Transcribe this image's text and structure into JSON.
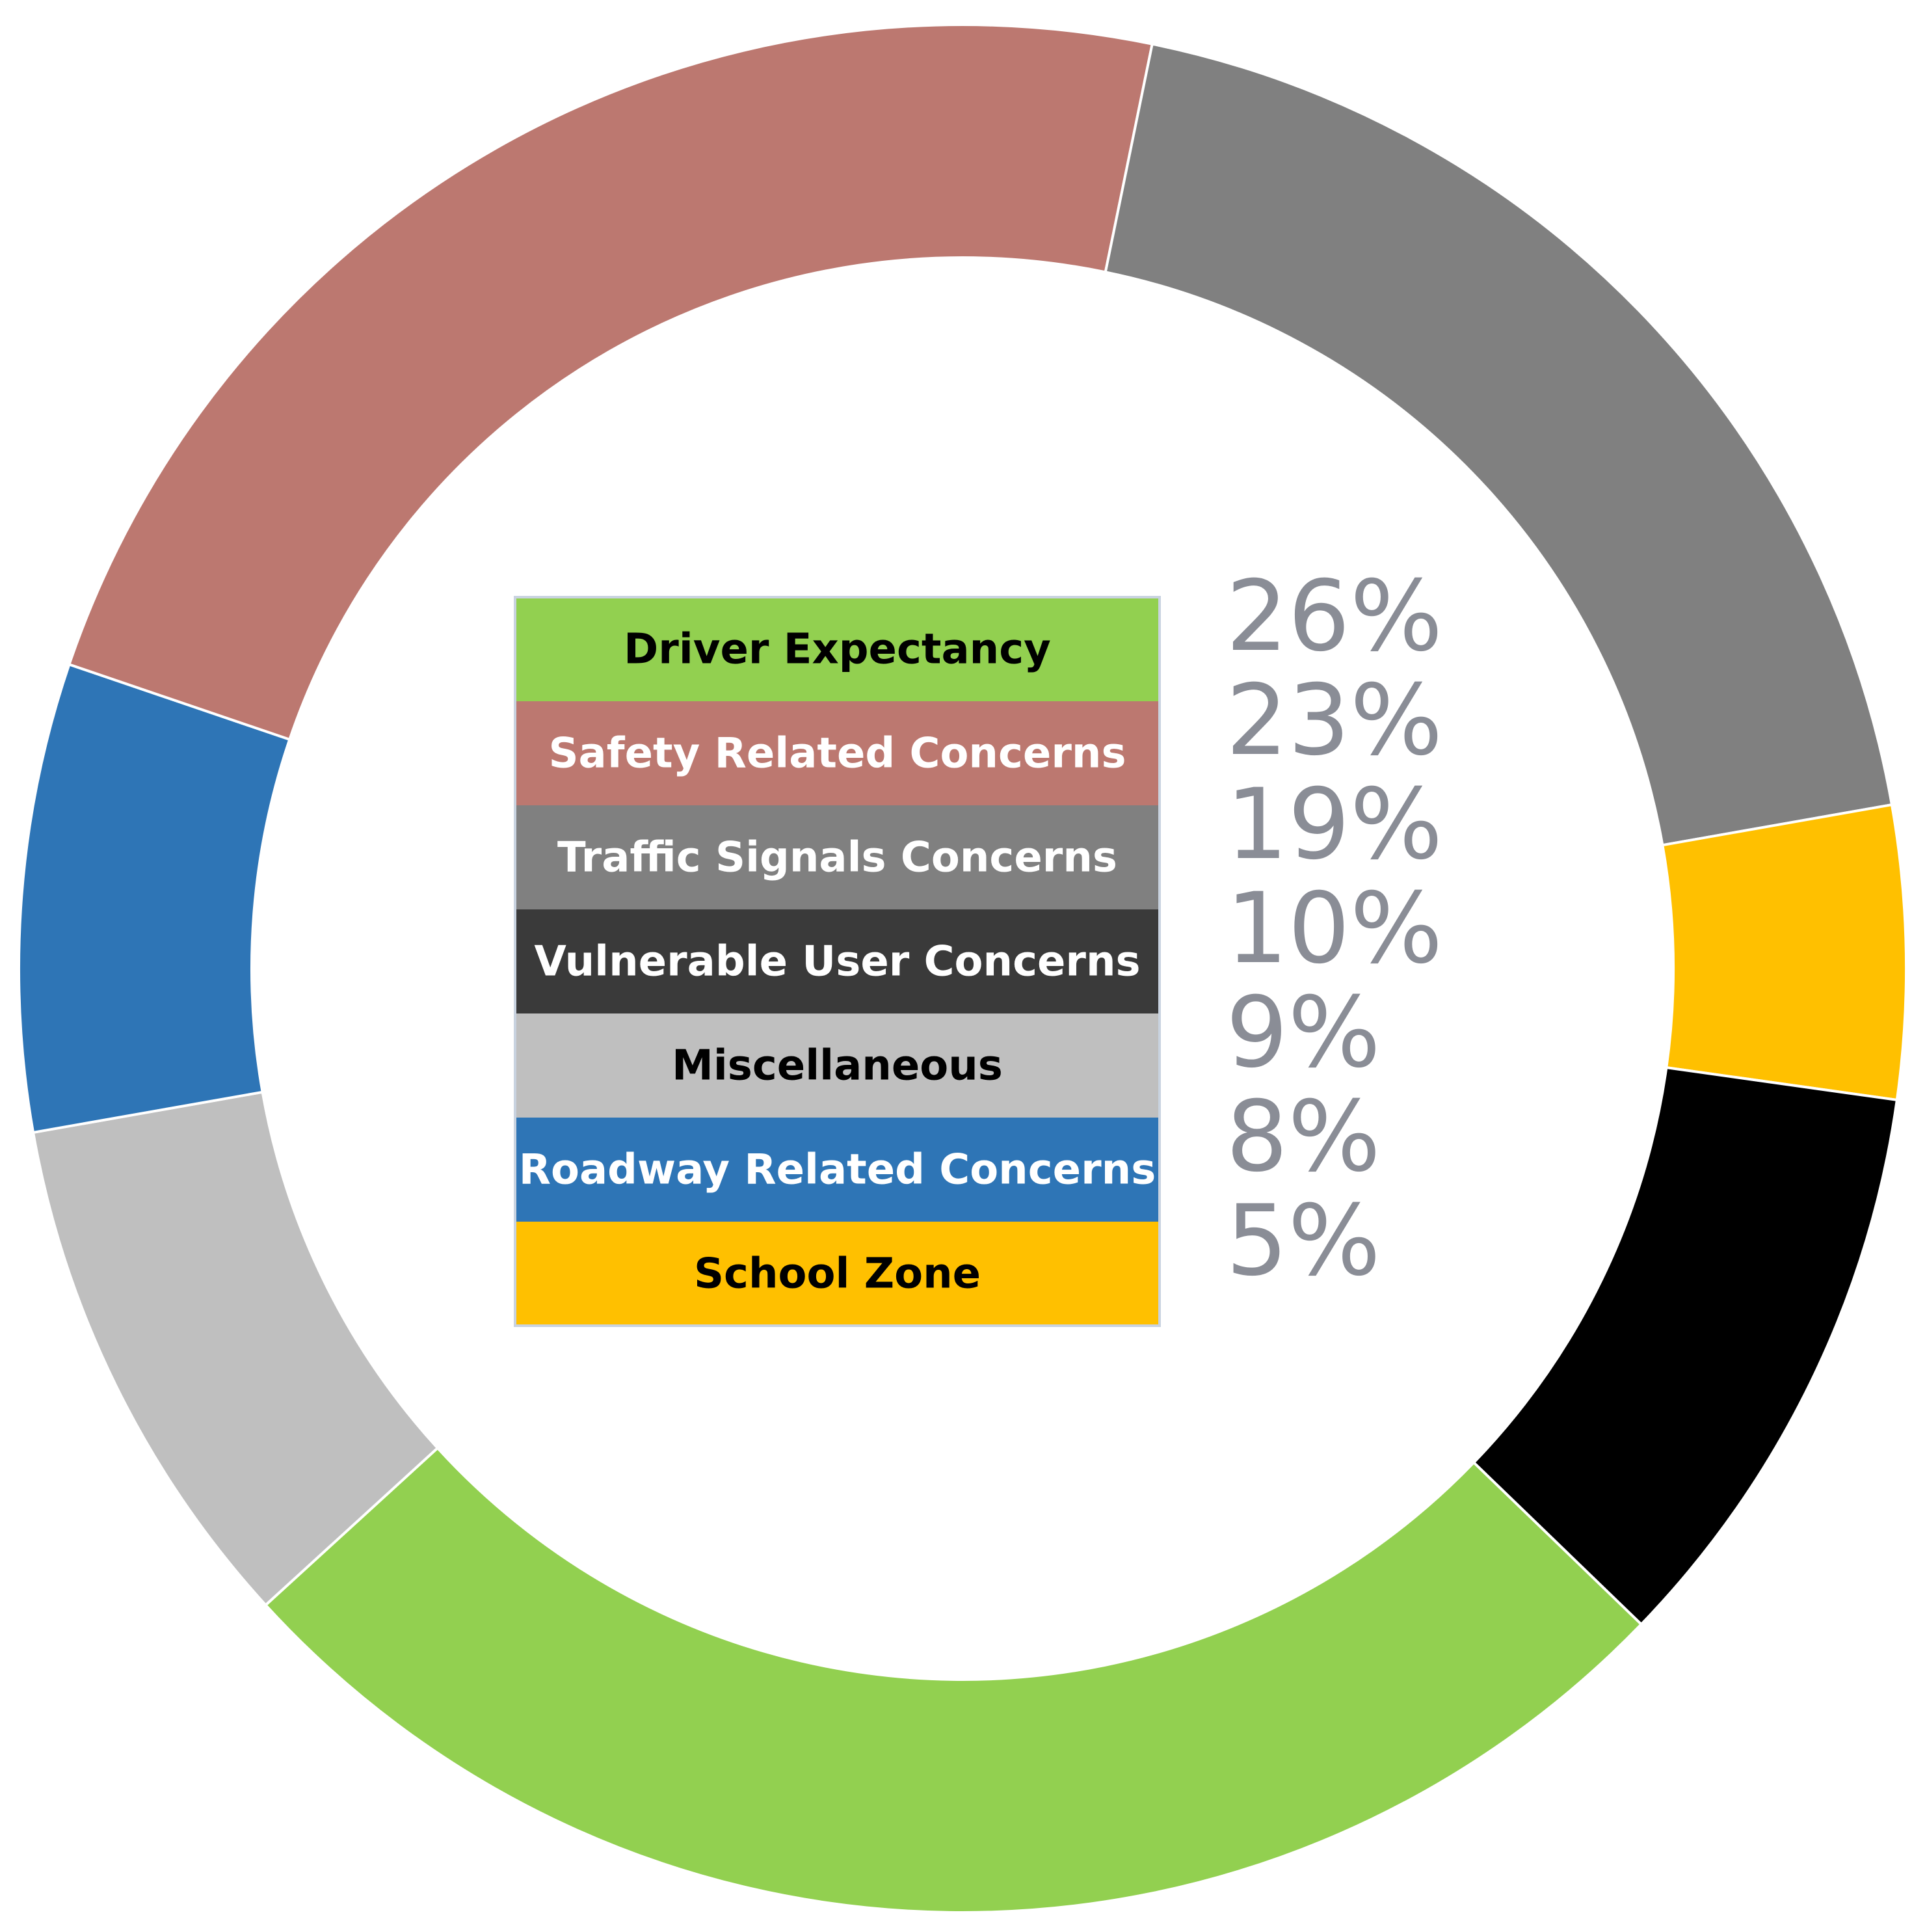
{
  "chart_data": {
    "type": "donut",
    "categories": [
      "Driver Expectancy",
      "Safety Related Concerns",
      "Traffic Signals Concerns",
      "Vulnerable User Concerns",
      "Miscellaneous",
      "Roadway Related Concerns",
      "School Zone"
    ],
    "values": [
      26,
      23,
      19,
      10,
      9,
      8,
      5
    ],
    "value_labels": [
      "26%",
      "23%",
      "19%",
      "10%",
      "9%",
      "8%",
      "5%"
    ],
    "colors": [
      "#92d050",
      "#bc7870",
      "#808080",
      "#000000",
      "#bfbfbf",
      "#2e75b6",
      "#ffc000"
    ],
    "legend": "center"
  }
}
